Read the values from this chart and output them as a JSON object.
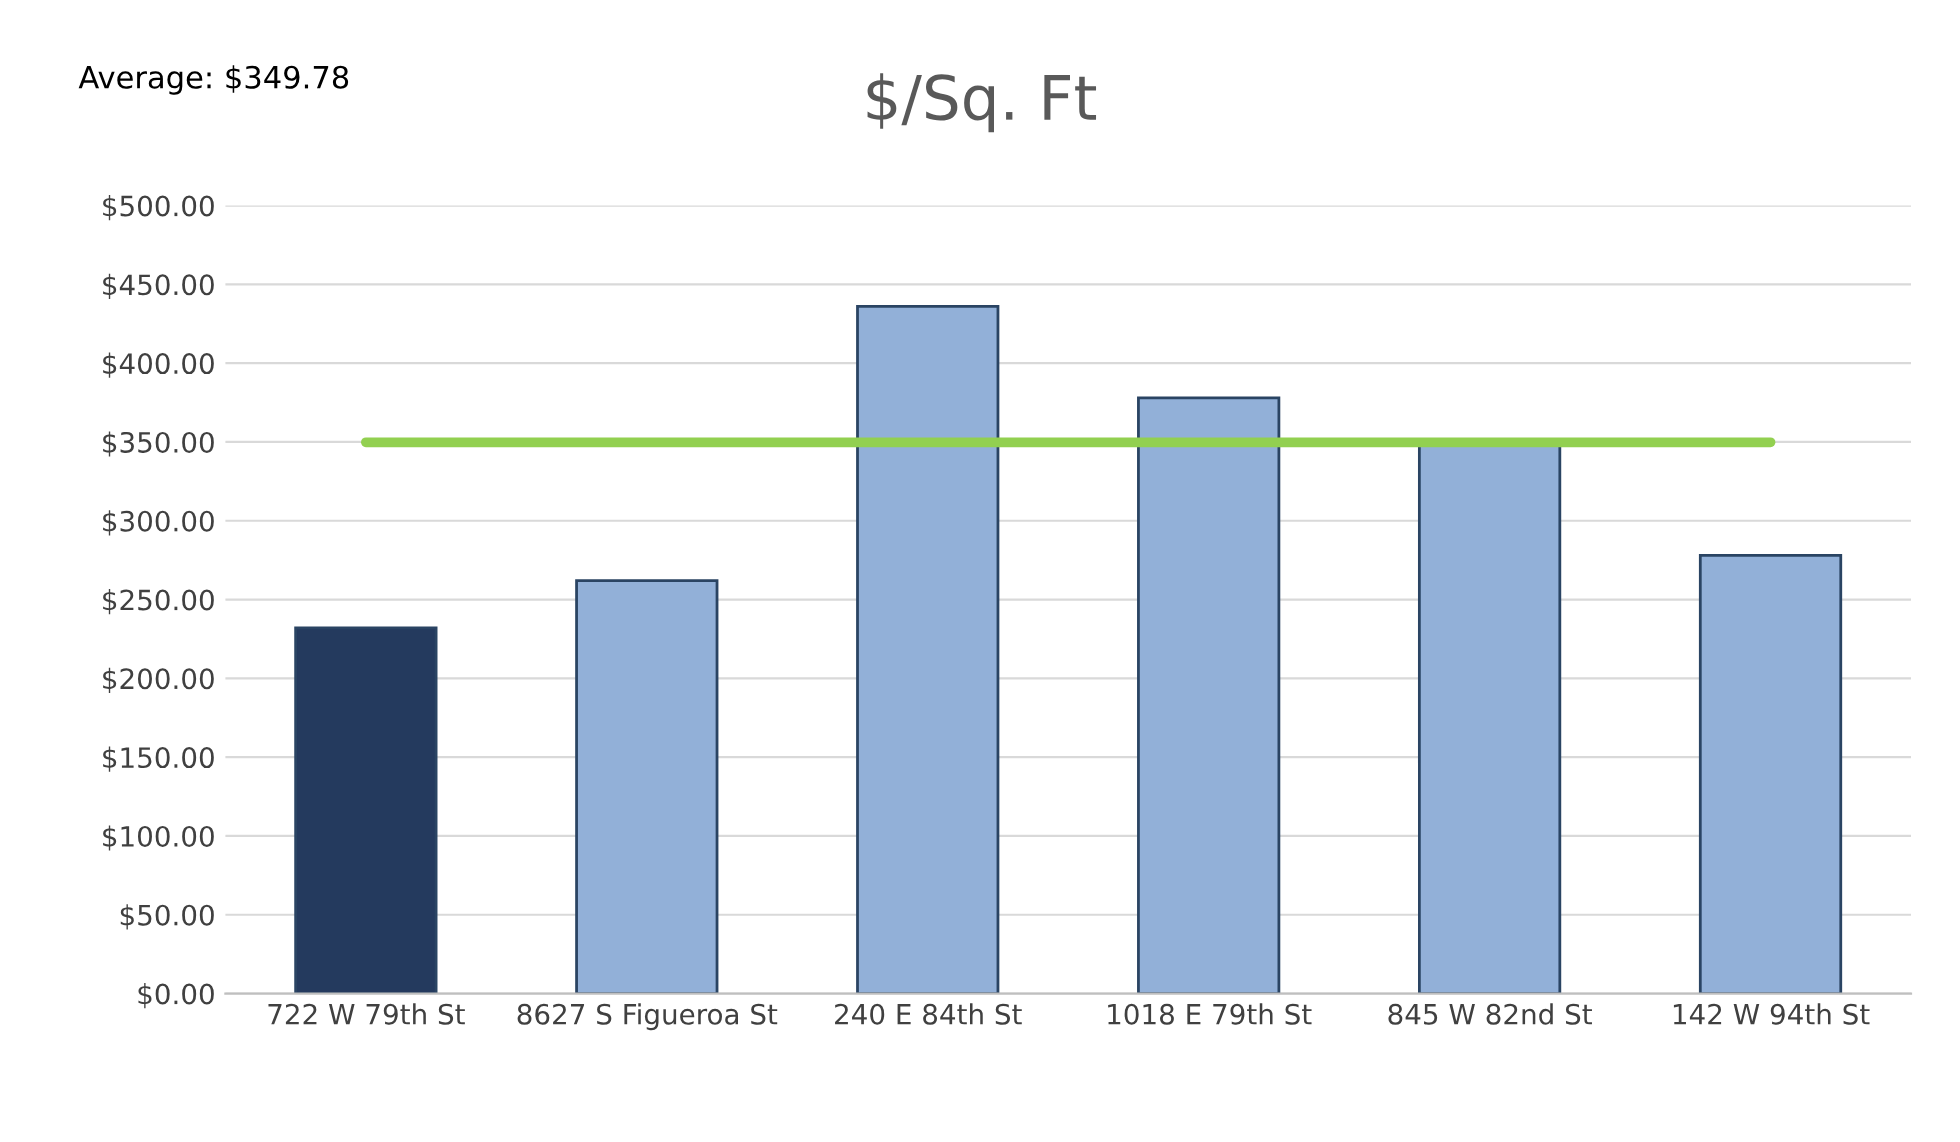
{
  "chart_data": {
    "type": "bar",
    "title": "$/Sq. Ft",
    "categories": [
      "722 W 79th St",
      "8627 S Figueroa St",
      "240 E 84th St",
      "1018 E 79th St",
      "845 W 82nd St",
      "142 W 94th St"
    ],
    "series": [
      {
        "colors": [
          "#243a5e",
          "#92b0d8",
          "#92b0d8",
          "#92b0d8",
          "#92b0d8",
          "#92b0d8"
        ],
        "values": [
          232,
          262,
          436,
          378,
          349,
          278
        ]
      },
      {
        "type": "line",
        "color": "#92d050",
        "values": [
          349.78,
          349.78,
          349.78,
          349.78,
          349.78,
          349.78
        ]
      }
    ],
    "ylim": [
      0,
      500
    ],
    "yticks": [
      {
        "value": 0,
        "label": "$0.00"
      },
      {
        "value": 50,
        "label": "$50.00"
      },
      {
        "value": 100,
        "label": "$100.00"
      },
      {
        "value": 150,
        "label": "$150.00"
      },
      {
        "value": 200,
        "label": "$200.00"
      },
      {
        "value": 250,
        "label": "$250.00"
      },
      {
        "value": 300,
        "label": "$300.00"
      },
      {
        "value": 350,
        "label": "$350.00"
      },
      {
        "value": 400,
        "label": "$400.00"
      },
      {
        "value": 450,
        "label": "$450.00"
      },
      {
        "value": 500,
        "label": "$500.00"
      }
    ],
    "grid": "y",
    "legend": false,
    "annotations": [
      "Average: $349.78"
    ]
  }
}
